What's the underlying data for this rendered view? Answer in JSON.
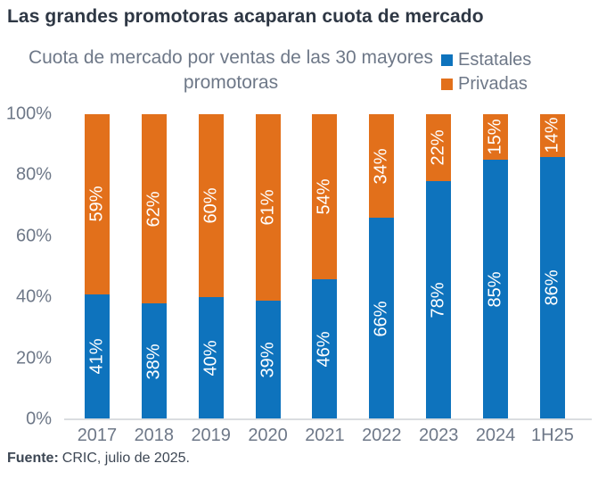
{
  "page": {
    "title": "Las grandes promotoras acaparan cuota de mercado"
  },
  "chart_data": {
    "type": "bar",
    "stacked": true,
    "title": "Cuota de mercado por ventas de las 30 mayores promotoras",
    "categories": [
      "2017",
      "2018",
      "2019",
      "2020",
      "2021",
      "2022",
      "2023",
      "2024",
      "1H25"
    ],
    "series": [
      {
        "name": "Estatales",
        "color": "#0E73BD",
        "values": [
          41,
          38,
          40,
          39,
          46,
          66,
          78,
          85,
          86
        ]
      },
      {
        "name": "Privadas",
        "color": "#E2701B",
        "values": [
          59,
          62,
          60,
          61,
          54,
          34,
          22,
          15,
          14
        ]
      }
    ],
    "value_suffix": "%",
    "y_ticks": [
      "100%",
      "80%",
      "60%",
      "40%",
      "20%",
      "0%"
    ],
    "ylim": [
      0,
      100
    ],
    "grid": false,
    "legend_position": "top-right",
    "bar_label_style": "rotated-white-inside-segments"
  },
  "footer": {
    "label": "Fuente:",
    "text": "CRIC, julio de 2025."
  },
  "colors": {
    "estatales_blue": "#0E73BD",
    "privadas_orange": "#E2701B",
    "title_text": "#2E3744",
    "axis_text": "#6E7888",
    "footer_text": "#3D4754",
    "axis_line": "#DADDE0",
    "bar_label_text": "#FFFFFF"
  }
}
